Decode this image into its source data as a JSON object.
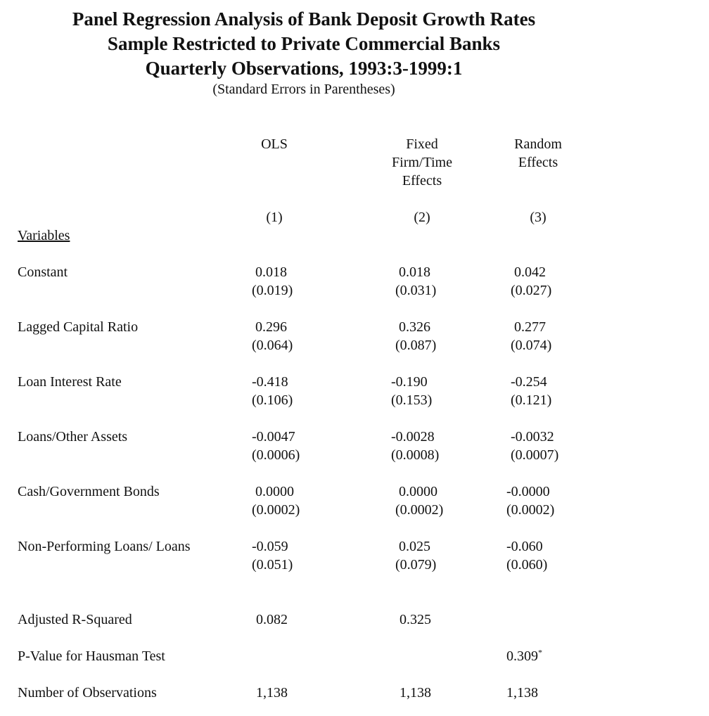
{
  "title_lines": [
    "Panel Regression Analysis of Bank Deposit Growth Rates",
    "Sample Restricted to Private Commercial Banks",
    "Quarterly Observations, 1993:3-1999:1"
  ],
  "subtitle": "(Standard Errors in Parentheses)",
  "columns": [
    {
      "header_lines": [
        "OLS"
      ],
      "number": "(1)"
    },
    {
      "header_lines": [
        "Fixed",
        "Firm/Time",
        "Effects"
      ],
      "number": "(2)"
    },
    {
      "header_lines": [
        "Random",
        "Effects"
      ],
      "number": "(3)"
    }
  ],
  "variables_label": "Variables",
  "rows": [
    {
      "label": "Constant",
      "coef": [
        "0.018",
        "0.018",
        "0.042"
      ],
      "se": [
        "(0.019)",
        "(0.031)",
        "(0.027)"
      ]
    },
    {
      "label": "Lagged Capital Ratio",
      "coef": [
        "0.296",
        "0.326",
        "0.277"
      ],
      "se": [
        "(0.064)",
        "(0.087)",
        "(0.074)"
      ]
    },
    {
      "label": "Loan Interest Rate",
      "coef": [
        "-0.418",
        "-0.190",
        "-0.254"
      ],
      "se": [
        "(0.106)",
        "(0.153)",
        "(0.121)"
      ]
    },
    {
      "label": "Loans/Other Assets",
      "coef": [
        "-0.0047",
        "-0.0028",
        "-0.0032"
      ],
      "se": [
        "(0.0006)",
        "(0.0008)",
        "(0.0007)"
      ]
    },
    {
      "label": "Cash/Government Bonds",
      "coef": [
        "0.0000",
        "0.0000",
        "-0.0000"
      ],
      "se": [
        "(0.0002)",
        "(0.0002)",
        "(0.0002)"
      ]
    },
    {
      "label": "Non-Performing Loans/ Loans",
      "coef": [
        "-0.059",
        "0.025",
        "-0.060"
      ],
      "se": [
        "(0.051)",
        "(0.079)",
        "(0.060)"
      ]
    }
  ],
  "stats": [
    {
      "label": "Adjusted R-Squared",
      "values": [
        "0.082",
        "0.325",
        ""
      ]
    },
    {
      "label": "P-Value for Hausman Test",
      "values": [
        "",
        "",
        "0.309"
      ],
      "footnote_mark": "*"
    },
    {
      "label": "Number of Observations",
      "values": [
        "1,138",
        "1,138",
        "1,138"
      ]
    }
  ]
}
